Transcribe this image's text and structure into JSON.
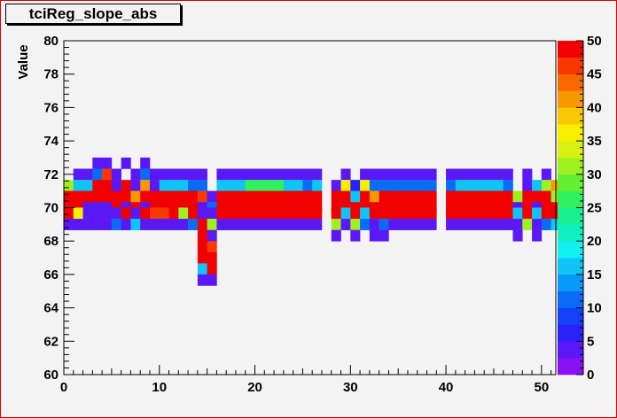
{
  "chart_data": {
    "type": "heatmap",
    "title": "tciReg_slope_abs",
    "xlabel": "",
    "ylabel": "Value",
    "xlim": [
      0,
      51.5
    ],
    "ylim": [
      60,
      80
    ],
    "x_bin_width": 1,
    "y_bin_width": 0.6667,
    "x_ticks": [
      "0",
      "10",
      "20",
      "30",
      "40",
      "50"
    ],
    "y_ticks": [
      "60",
      "62",
      "64",
      "66",
      "68",
      "70",
      "72",
      "74",
      "76",
      "78",
      "80"
    ],
    "color_scale": {
      "min": 0,
      "max": 50,
      "ticks": [
        "0",
        "5",
        "10",
        "15",
        "20",
        "25",
        "30",
        "35",
        "40",
        "45",
        "50"
      ],
      "palette": [
        "#8a10f6",
        "#5a18f6",
        "#2a20f8",
        "#1440f8",
        "#0a6cf6",
        "#0a98f8",
        "#10c4f8",
        "#10f0f0",
        "#10f0c0",
        "#18f090",
        "#30f060",
        "#60f030",
        "#a0f020",
        "#d8f010",
        "#f8f000",
        "#f8c800",
        "#f89800",
        "#f86800",
        "#f83800",
        "#f00000"
      ]
    },
    "rows": [
      {
        "y": 72.67,
        "cells": [
          [
            3,
            3
          ],
          [
            4,
            3
          ],
          [
            6,
            3
          ],
          [
            8,
            3
          ]
        ]
      },
      {
        "y": 72.0,
        "cells": [
          [
            1,
            3
          ],
          [
            2,
            3
          ],
          [
            3,
            11
          ],
          [
            4,
            45
          ],
          [
            5,
            3
          ],
          [
            7,
            3
          ],
          [
            8,
            11
          ],
          [
            9,
            3
          ],
          [
            10,
            3
          ],
          [
            11,
            3
          ],
          [
            12,
            3
          ],
          [
            13,
            3
          ],
          [
            14,
            3
          ],
          [
            16,
            3
          ],
          [
            17,
            3
          ],
          [
            18,
            3
          ],
          [
            19,
            3
          ],
          [
            20,
            3
          ],
          [
            21,
            3
          ],
          [
            22,
            3
          ],
          [
            23,
            3
          ],
          [
            24,
            3
          ],
          [
            25,
            3
          ],
          [
            26,
            3
          ],
          [
            29,
            3
          ],
          [
            31,
            3
          ],
          [
            32,
            3
          ],
          [
            33,
            3
          ],
          [
            34,
            3
          ],
          [
            35,
            3
          ],
          [
            36,
            3
          ],
          [
            37,
            3
          ],
          [
            38,
            3
          ],
          [
            40,
            3
          ],
          [
            41,
            3
          ],
          [
            42,
            3
          ],
          [
            43,
            3
          ],
          [
            44,
            3
          ],
          [
            45,
            3
          ],
          [
            46,
            3
          ],
          [
            48,
            3
          ],
          [
            50,
            3
          ]
        ]
      },
      {
        "y": 71.33,
        "cells": [
          [
            0,
            30
          ],
          [
            1,
            16
          ],
          [
            2,
            16
          ],
          [
            3,
            50
          ],
          [
            4,
            50
          ],
          [
            5,
            3
          ],
          [
            6,
            50
          ],
          [
            7,
            3
          ],
          [
            8,
            42
          ],
          [
            9,
            3
          ],
          [
            10,
            16
          ],
          [
            11,
            16
          ],
          [
            12,
            16
          ],
          [
            13,
            11
          ],
          [
            14,
            11
          ],
          [
            16,
            16
          ],
          [
            17,
            16
          ],
          [
            18,
            16
          ],
          [
            19,
            25
          ],
          [
            20,
            25
          ],
          [
            21,
            25
          ],
          [
            22,
            25
          ],
          [
            23,
            16
          ],
          [
            24,
            16
          ],
          [
            25,
            11
          ],
          [
            26,
            16
          ],
          [
            28,
            3
          ],
          [
            29,
            37
          ],
          [
            30,
            5
          ],
          [
            31,
            35
          ],
          [
            32,
            11
          ],
          [
            33,
            11
          ],
          [
            34,
            11
          ],
          [
            35,
            11
          ],
          [
            36,
            11
          ],
          [
            37,
            11
          ],
          [
            38,
            11
          ],
          [
            40,
            11
          ],
          [
            41,
            16
          ],
          [
            42,
            16
          ],
          [
            43,
            16
          ],
          [
            44,
            16
          ],
          [
            45,
            16
          ],
          [
            46,
            11
          ],
          [
            48,
            3
          ],
          [
            49,
            16
          ],
          [
            50,
            30
          ],
          [
            51,
            42
          ]
        ]
      },
      {
        "y": 70.67,
        "cells": [
          [
            0,
            50
          ],
          [
            1,
            50
          ],
          [
            2,
            50
          ],
          [
            3,
            50
          ],
          [
            4,
            50
          ],
          [
            5,
            50
          ],
          [
            6,
            50
          ],
          [
            7,
            40
          ],
          [
            8,
            50
          ],
          [
            9,
            50
          ],
          [
            10,
            50
          ],
          [
            11,
            50
          ],
          [
            12,
            50
          ],
          [
            13,
            50
          ],
          [
            14,
            45
          ],
          [
            15,
            3
          ],
          [
            16,
            50
          ],
          [
            17,
            50
          ],
          [
            18,
            50
          ],
          [
            19,
            50
          ],
          [
            20,
            50
          ],
          [
            21,
            50
          ],
          [
            22,
            50
          ],
          [
            23,
            50
          ],
          [
            24,
            50
          ],
          [
            25,
            50
          ],
          [
            26,
            50
          ],
          [
            28,
            50
          ],
          [
            29,
            50
          ],
          [
            30,
            16
          ],
          [
            31,
            50
          ],
          [
            32,
            40
          ],
          [
            33,
            50
          ],
          [
            34,
            50
          ],
          [
            35,
            50
          ],
          [
            36,
            50
          ],
          [
            37,
            50
          ],
          [
            38,
            50
          ],
          [
            40,
            50
          ],
          [
            41,
            50
          ],
          [
            42,
            50
          ],
          [
            43,
            50
          ],
          [
            44,
            50
          ],
          [
            45,
            50
          ],
          [
            46,
            50
          ],
          [
            47,
            30
          ],
          [
            48,
            50
          ],
          [
            49,
            50
          ],
          [
            50,
            50
          ],
          [
            51,
            30
          ]
        ]
      },
      {
        "y": 70.0,
        "cells": [
          [
            0,
            50
          ],
          [
            1,
            50
          ],
          [
            2,
            3
          ],
          [
            3,
            3
          ],
          [
            4,
            3
          ],
          [
            5,
            50
          ],
          [
            6,
            3
          ],
          [
            7,
            50
          ],
          [
            8,
            3
          ],
          [
            9,
            50
          ],
          [
            10,
            50
          ],
          [
            11,
            50
          ],
          [
            12,
            50
          ],
          [
            13,
            50
          ],
          [
            14,
            3
          ],
          [
            15,
            11
          ],
          [
            16,
            50
          ],
          [
            17,
            50
          ],
          [
            18,
            50
          ],
          [
            19,
            50
          ],
          [
            20,
            50
          ],
          [
            21,
            50
          ],
          [
            22,
            50
          ],
          [
            23,
            50
          ],
          [
            24,
            50
          ],
          [
            25,
            50
          ],
          [
            26,
            50
          ],
          [
            28,
            50
          ],
          [
            29,
            50
          ],
          [
            30,
            50
          ],
          [
            31,
            50
          ],
          [
            32,
            50
          ],
          [
            33,
            50
          ],
          [
            34,
            50
          ],
          [
            35,
            50
          ],
          [
            36,
            50
          ],
          [
            37,
            50
          ],
          [
            38,
            50
          ],
          [
            40,
            50
          ],
          [
            41,
            50
          ],
          [
            42,
            50
          ],
          [
            43,
            50
          ],
          [
            44,
            50
          ],
          [
            45,
            50
          ],
          [
            46,
            50
          ],
          [
            47,
            3
          ],
          [
            48,
            50
          ],
          [
            49,
            3
          ],
          [
            50,
            50
          ],
          [
            51,
            50
          ]
        ]
      },
      {
        "y": 69.67,
        "cells": [
          [
            0,
            50
          ],
          [
            1,
            37
          ],
          [
            2,
            3
          ],
          [
            3,
            3
          ],
          [
            4,
            3
          ],
          [
            5,
            3
          ],
          [
            6,
            50
          ],
          [
            7,
            3
          ],
          [
            8,
            50
          ],
          [
            9,
            45
          ],
          [
            10,
            45
          ],
          [
            11,
            50
          ],
          [
            12,
            30
          ],
          [
            13,
            50
          ],
          [
            14,
            3
          ],
          [
            15,
            3
          ],
          [
            16,
            50
          ],
          [
            17,
            50
          ],
          [
            18,
            50
          ],
          [
            19,
            50
          ],
          [
            20,
            50
          ],
          [
            21,
            50
          ],
          [
            22,
            50
          ],
          [
            23,
            50
          ],
          [
            24,
            50
          ],
          [
            25,
            50
          ],
          [
            26,
            50
          ],
          [
            28,
            50
          ],
          [
            29,
            16
          ],
          [
            30,
            50
          ],
          [
            31,
            16
          ],
          [
            32,
            50
          ],
          [
            33,
            50
          ],
          [
            34,
            50
          ],
          [
            35,
            50
          ],
          [
            36,
            50
          ],
          [
            37,
            50
          ],
          [
            38,
            50
          ],
          [
            40,
            50
          ],
          [
            41,
            50
          ],
          [
            42,
            50
          ],
          [
            43,
            50
          ],
          [
            44,
            50
          ],
          [
            45,
            50
          ],
          [
            46,
            50
          ],
          [
            47,
            16
          ],
          [
            48,
            50
          ],
          [
            49,
            16
          ],
          [
            50,
            50
          ],
          [
            51,
            50
          ]
        ]
      },
      {
        "y": 69.0,
        "cells": [
          [
            0,
            3
          ],
          [
            1,
            3
          ],
          [
            2,
            3
          ],
          [
            3,
            3
          ],
          [
            4,
            3
          ],
          [
            5,
            11
          ],
          [
            6,
            3
          ],
          [
            7,
            16
          ],
          [
            8,
            3
          ],
          [
            9,
            3
          ],
          [
            10,
            3
          ],
          [
            11,
            3
          ],
          [
            12,
            3
          ],
          [
            13,
            11
          ],
          [
            14,
            50
          ],
          [
            15,
            30
          ],
          [
            16,
            3
          ],
          [
            17,
            3
          ],
          [
            18,
            3
          ],
          [
            19,
            3
          ],
          [
            20,
            3
          ],
          [
            21,
            3
          ],
          [
            22,
            3
          ],
          [
            23,
            3
          ],
          [
            24,
            3
          ],
          [
            25,
            3
          ],
          [
            26,
            3
          ],
          [
            28,
            30
          ],
          [
            29,
            3
          ],
          [
            30,
            30
          ],
          [
            31,
            11
          ],
          [
            32,
            3
          ],
          [
            33,
            11
          ],
          [
            34,
            3
          ],
          [
            35,
            3
          ],
          [
            36,
            3
          ],
          [
            37,
            3
          ],
          [
            38,
            3
          ],
          [
            40,
            3
          ],
          [
            41,
            3
          ],
          [
            42,
            3
          ],
          [
            43,
            3
          ],
          [
            44,
            3
          ],
          [
            45,
            3
          ],
          [
            46,
            3
          ],
          [
            47,
            3
          ],
          [
            48,
            30
          ],
          [
            49,
            3
          ],
          [
            50,
            11
          ],
          [
            51,
            16
          ]
        ]
      },
      {
        "y": 68.33,
        "cells": [
          [
            14,
            50
          ],
          [
            15,
            3
          ],
          [
            28,
            3
          ],
          [
            30,
            3
          ],
          [
            32,
            3
          ],
          [
            33,
            3
          ],
          [
            47,
            3
          ],
          [
            49,
            3
          ]
        ]
      },
      {
        "y": 67.67,
        "cells": [
          [
            14,
            50
          ],
          [
            15,
            45
          ]
        ]
      },
      {
        "y": 67.0,
        "cells": [
          [
            14,
            50
          ],
          [
            15,
            50
          ]
        ]
      },
      {
        "y": 66.33,
        "cells": [
          [
            14,
            16
          ],
          [
            15,
            50
          ]
        ]
      },
      {
        "y": 65.67,
        "cells": [
          [
            14,
            3
          ],
          [
            15,
            3
          ]
        ]
      }
    ]
  }
}
